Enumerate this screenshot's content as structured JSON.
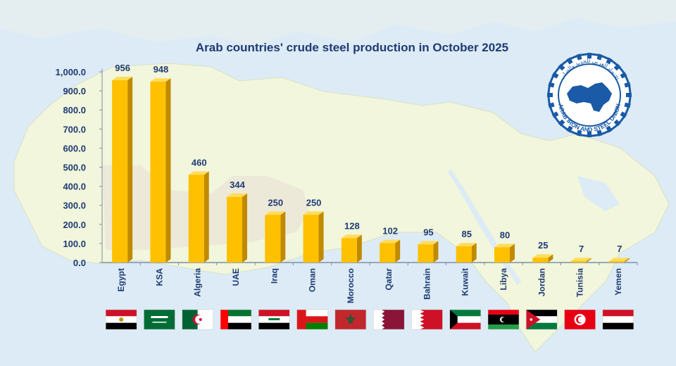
{
  "chart_data": {
    "type": "bar",
    "title": "Arab countries' crude steel production in October 2025",
    "categories": [
      "Egypt",
      "KSA",
      "Algeria",
      "UAE",
      "Iraq",
      "Oman",
      "Morocco",
      "Qatar",
      "Bahrain",
      "Kuwait",
      "Libya",
      "Jordan",
      "Tunisia",
      "Yemen"
    ],
    "values": [
      956,
      948,
      460,
      344,
      250,
      250,
      128,
      102,
      95,
      85,
      80,
      25,
      7,
      7
    ],
    "value_labels": [
      "956",
      "948",
      "460",
      "344",
      "250",
      "250",
      "128",
      "102",
      "95",
      "85",
      "80",
      "25",
      "7",
      "7"
    ],
    "yticks": [
      "0.0",
      "100.0",
      "200.0",
      "300.0",
      "400.0",
      "500.0",
      "600.0",
      "700.0",
      "800.0",
      "900.0",
      "1,000.0"
    ],
    "ylim": [
      0,
      1000
    ],
    "xlabel": "",
    "ylabel": "",
    "grid": false,
    "bar_color": "#ffc000",
    "bar_side_color": "#c08a00",
    "bar_top_color": "#ffdc5a"
  },
  "logo": {
    "name": "arab-iron-and-steel-union-logo",
    "text": "ARAB IRON AND STEEL UNION",
    "arabic_text": "الاتحاد العربي للحديد والصلب",
    "color": "#1a5aa6"
  },
  "flags": [
    "egypt-flag",
    "saudi-flag",
    "algeria-flag",
    "uae-flag",
    "iraq-flag",
    "oman-flag",
    "morocco-flag",
    "qatar-flag",
    "bahrain-flag",
    "kuwait-flag",
    "libya-flag",
    "jordan-flag",
    "tunisia-flag",
    "yemen-flag"
  ],
  "colors": {
    "background_sea": "#dcebf5",
    "land": "#f1f6dc",
    "axis_text": "#1f3a73"
  }
}
